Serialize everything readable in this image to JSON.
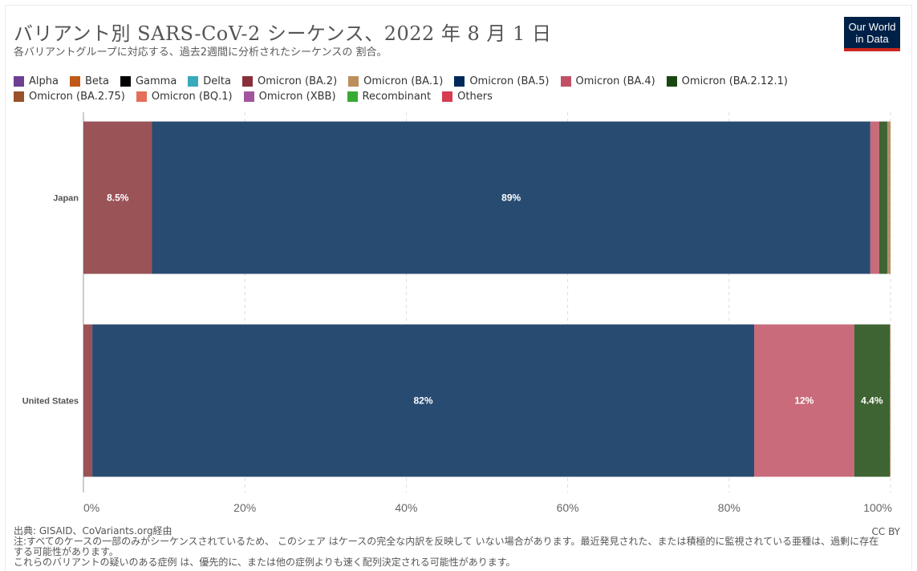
{
  "header": {
    "title": "バリアント別 SARS-CoV-2 シーケンス、2022 年 8 月 1 日",
    "subtitle": "各バリアントグループに対応する、過去2週間に分析されたシーケンスの 割合。",
    "logo_line1": "Our World",
    "logo_line2": "in Data"
  },
  "legend": {
    "rows": [
      [
        {
          "label": "Alpha",
          "color": "#6d3e91"
        },
        {
          "label": "Beta",
          "color": "#c05917"
        },
        {
          "label": "Gamma",
          "color": "#000000"
        },
        {
          "label": "Delta",
          "color": "#38aaba"
        },
        {
          "label": "Omicron (BA.2)",
          "color": "#883039"
        },
        {
          "label": "Omicron (BA.1)",
          "color": "#bc8e5a"
        },
        {
          "label": "Omicron (BA.5)",
          "color": "#00295b"
        },
        {
          "label": "Omicron (BA.4)",
          "color": "#c15065"
        },
        {
          "label": "Omicron (BA.2.12.1)",
          "color": "#18470f"
        }
      ],
      [
        {
          "label": "Omicron (BA.2.75)",
          "color": "#9a5129"
        },
        {
          "label": "Omicron (BQ.1)",
          "color": "#e56e5a"
        },
        {
          "label": "Omicron (XBB)",
          "color": "#a2559c"
        },
        {
          "label": "Recombinant",
          "color": "#38aa34"
        },
        {
          "label": "Others",
          "color": "#d73c50"
        }
      ]
    ]
  },
  "chart_data": {
    "type": "bar",
    "orientation": "horizontal",
    "stacked": true,
    "categories": [
      "Japan",
      "United States"
    ],
    "xlim": [
      0,
      100
    ],
    "x_ticks": [
      "0%",
      "20%",
      "40%",
      "60%",
      "80%",
      "100%"
    ],
    "grid": true,
    "series": [
      {
        "name": "Omicron (BA.2)",
        "color": "#9a5357",
        "values": [
          8.5,
          1.1
        ],
        "labels": [
          "8.5%",
          ""
        ]
      },
      {
        "name": "Omicron (BA.5)",
        "color": "#284b72",
        "values": [
          89,
          82
        ],
        "labels": [
          "89%",
          "82%"
        ]
      },
      {
        "name": "Omicron (BA.4)",
        "color": "#c96b7b",
        "values": [
          1.1,
          12.4
        ],
        "labels": [
          "",
          "12%"
        ]
      },
      {
        "name": "Omicron (BA.2.12.1)",
        "color": "#3f6433",
        "values": [
          1.0,
          4.4
        ],
        "labels": [
          "",
          "4.4%"
        ]
      },
      {
        "name": "Omicron (BA.1)",
        "color": "#b48f66",
        "values": [
          0.4,
          0.1
        ],
        "labels": [
          "",
          ""
        ]
      }
    ]
  },
  "footer": {
    "source": "出典: GISAID、CoVariants.org経由",
    "note1": "注:すべてのケースの一部のみがシーケンスされているため、 このシェア はケースの完全な内訳を反映して いない場合があります。最近発見された、または積極的に監視されている亜種は、過剰に存在する可能性があります。",
    "note2": "これらのバリアントの疑いのある症例 は、優先的に、または他の症例よりも速く配列決定される可能性があります。",
    "license": "CC BY"
  }
}
